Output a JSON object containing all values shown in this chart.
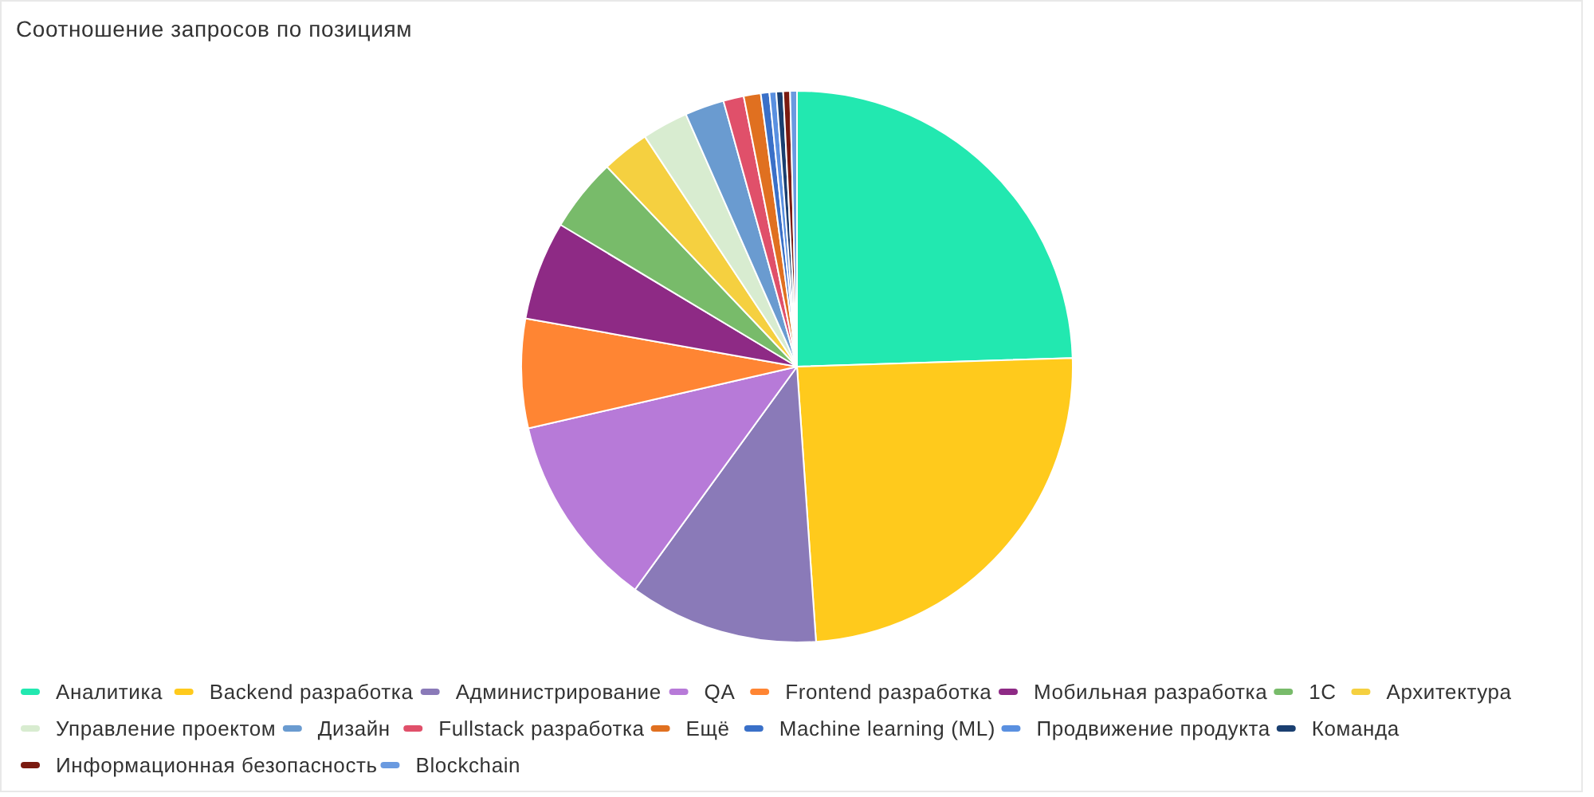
{
  "chart_data": {
    "type": "pie",
    "title": "Соотношение запросов по позициям",
    "categories": [
      "Аналитика",
      "Backend разработка",
      "Администрирование",
      "QA",
      "Frontend разработка",
      "Мобильная разработка",
      "1С",
      "Архитектура",
      "Управление проектом",
      "Дизайн",
      "Fullstack разработка",
      "Ещё",
      "Machine learning (ML)",
      "Продвижение продукта",
      "Команда",
      "Информационная безопасность",
      "Blockchain"
    ],
    "values": [
      24.5,
      24.4,
      11.1,
      11.4,
      6.4,
      5.8,
      4.3,
      2.8,
      2.7,
      2.3,
      1.2,
      1.0,
      0.5,
      0.4,
      0.4,
      0.4,
      0.4
    ],
    "colors": [
      "#22e8b0",
      "#ffca1c",
      "#8a7ab8",
      "#b77ad8",
      "#ff8533",
      "#8e2a85",
      "#78bb6a",
      "#f5d040",
      "#d8ecd0",
      "#6a9bd0",
      "#e0506a",
      "#e07020",
      "#3a70c8",
      "#5a90e0",
      "#1a3f70",
      "#7a1a10",
      "#6a9ae0"
    ],
    "legend": "bottom"
  }
}
